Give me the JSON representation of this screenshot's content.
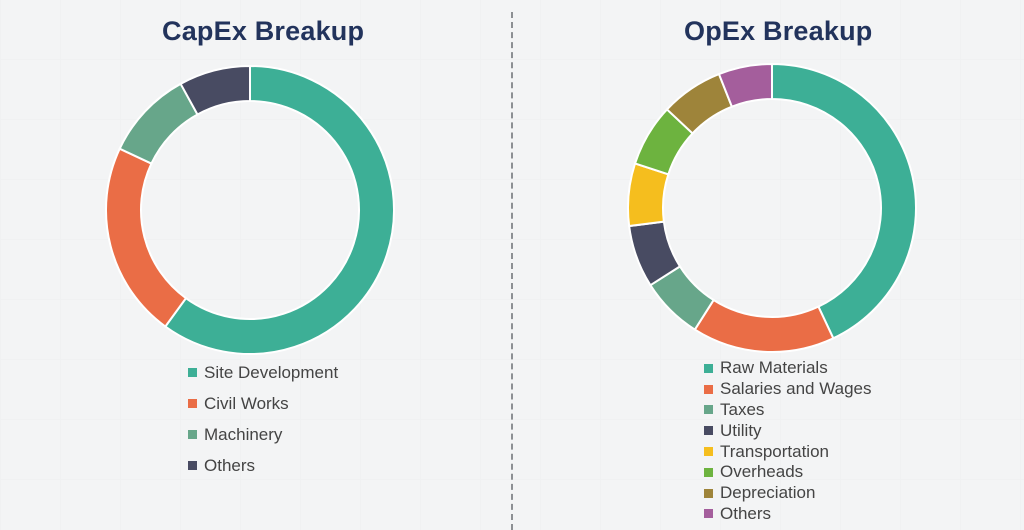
{
  "chart_data": [
    {
      "type": "pie",
      "title": "CapEx Breakup",
      "donut": true,
      "legend_position": "bottom",
      "categories": [
        "Site Development",
        "Civil Works",
        "Machinery",
        "Others"
      ],
      "values": [
        60,
        22,
        10,
        8
      ],
      "colors": [
        "#3daf96",
        "#ea6d46",
        "#67a68a",
        "#484b62"
      ]
    },
    {
      "type": "pie",
      "title": "OpEx Breakup",
      "donut": true,
      "legend_position": "bottom",
      "categories": [
        "Raw Materials",
        "Salaries and Wages",
        "Taxes",
        "Utility",
        "Transportation",
        "Overheads",
        "Depreciation",
        "Others"
      ],
      "values": [
        43,
        16,
        7,
        7,
        7,
        7,
        7,
        6
      ],
      "colors": [
        "#3daf96",
        "#ea6d46",
        "#67a68a",
        "#484b62",
        "#f5be1e",
        "#6db33f",
        "#9e843a",
        "#a45e9c"
      ]
    }
  ]
}
